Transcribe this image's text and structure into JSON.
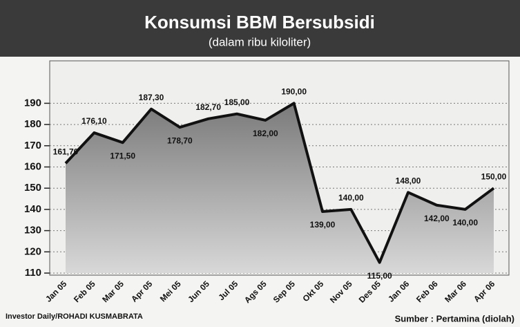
{
  "chart_data": {
    "type": "area",
    "title": "Konsumsi BBM Bersubsidi",
    "subtitle": "(dalam ribu kiloliter)",
    "categories": [
      "Jan 05",
      "Feb 05",
      "Mar 05",
      "Apr 05",
      "Mei 05",
      "Jun 05",
      "Jul 05",
      "Ags 05",
      "Sep 05",
      "Okt 05",
      "Nov 05",
      "Des 05",
      "Jan 06",
      "Feb 06",
      "Mar 06",
      "Apr 06"
    ],
    "values": [
      161.7,
      176.1,
      171.5,
      187.3,
      178.7,
      182.7,
      185,
      182,
      190,
      139,
      140,
      115,
      148,
      142,
      140,
      150
    ],
    "value_labels": [
      "161,70",
      "176,10",
      "171,50",
      "187,30",
      "178,70",
      "182,70",
      "185,00",
      "182,00",
      "190,00",
      "139,00",
      "140,00",
      "115,00",
      "148,00",
      "142,00",
      "140,00",
      "150,00"
    ],
    "color": "#8a8a8a",
    "ylim": [
      110,
      210
    ],
    "yticks": [
      110,
      120,
      130,
      140,
      150,
      160,
      170,
      180,
      190
    ],
    "grid": true,
    "credit": "Investor Daily/ROHADI KUSMABRATA",
    "source": "Sumber : Pertamina (diolah)"
  }
}
